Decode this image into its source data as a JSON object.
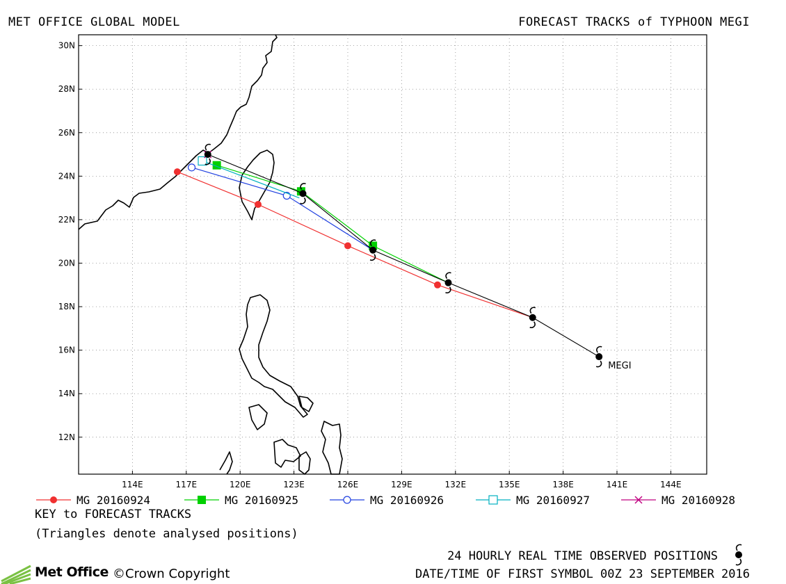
{
  "header": {
    "left_title": "MET OFFICE GLOBAL MODEL",
    "right_title": "FORECAST TRACKS of TYPHOON MEGI"
  },
  "map": {
    "lon_ticks": [
      "114E",
      "117E",
      "120E",
      "123E",
      "126E",
      "129E",
      "132E",
      "135E",
      "138E",
      "141E",
      "144E"
    ],
    "lat_ticks": [
      "30N",
      "28N",
      "26N",
      "24N",
      "22N",
      "20N",
      "18N",
      "16N",
      "14N",
      "12N"
    ],
    "storm_label": "MEGI",
    "colors": {
      "observed": "#000000",
      "mg_20160924": "#f03030",
      "mg_20160925": "#00d000",
      "mg_20160926": "#2040e0",
      "mg_20160927": "#00b0c0",
      "mg_20160928": "#c00080",
      "coast": "#000000",
      "grid": "#888888"
    },
    "observed_track": [
      [
        140.0,
        15.7
      ],
      [
        136.3,
        17.5
      ],
      [
        131.6,
        19.1
      ],
      [
        127.4,
        20.6
      ],
      [
        123.5,
        23.2
      ],
      [
        118.2,
        25.0
      ]
    ]
  },
  "legend": [
    {
      "label": "MG 20160924",
      "color": "#f03030",
      "marker": "filled-circle"
    },
    {
      "label": "MG 20160925",
      "color": "#00d000",
      "marker": "filled-square"
    },
    {
      "label": "MG 20160926",
      "color": "#2040e0",
      "marker": "open-circle"
    },
    {
      "label": "MG 20160927",
      "color": "#00b0c0",
      "marker": "open-square"
    },
    {
      "label": "MG 20160928",
      "color": "#c00080",
      "marker": "cross"
    }
  ],
  "tracks": {
    "mg_20160924": [
      [
        136.3,
        17.5
      ],
      [
        131.0,
        19.0
      ],
      [
        126.0,
        20.8
      ],
      [
        121.0,
        22.7
      ],
      [
        116.5,
        24.2
      ]
    ],
    "mg_20160925": [
      [
        131.6,
        19.1
      ],
      [
        127.4,
        20.8
      ],
      [
        123.4,
        23.3
      ],
      [
        118.7,
        24.5
      ]
    ],
    "mg_20160926": [
      [
        127.4,
        20.6
      ],
      [
        122.6,
        23.1
      ],
      [
        117.3,
        24.4
      ]
    ],
    "mg_20160927": [
      [
        123.3,
        23.0
      ],
      [
        117.9,
        24.7
      ]
    ],
    "mg_20160928": [
      [
        118.2,
        25.0
      ]
    ]
  },
  "footer": {
    "key_title": "KEY to FORECAST TRACKS",
    "key_note": "(Triangles denote analysed positions)",
    "observed_note": "24 HOURLY REAL TIME OBSERVED POSITIONS",
    "date_note": "DATE/TIME OF FIRST SYMBOL 00Z 23 SEPTEMBER 2016",
    "logo_text": "Met Office",
    "copyright": "©Crown Copyright"
  }
}
